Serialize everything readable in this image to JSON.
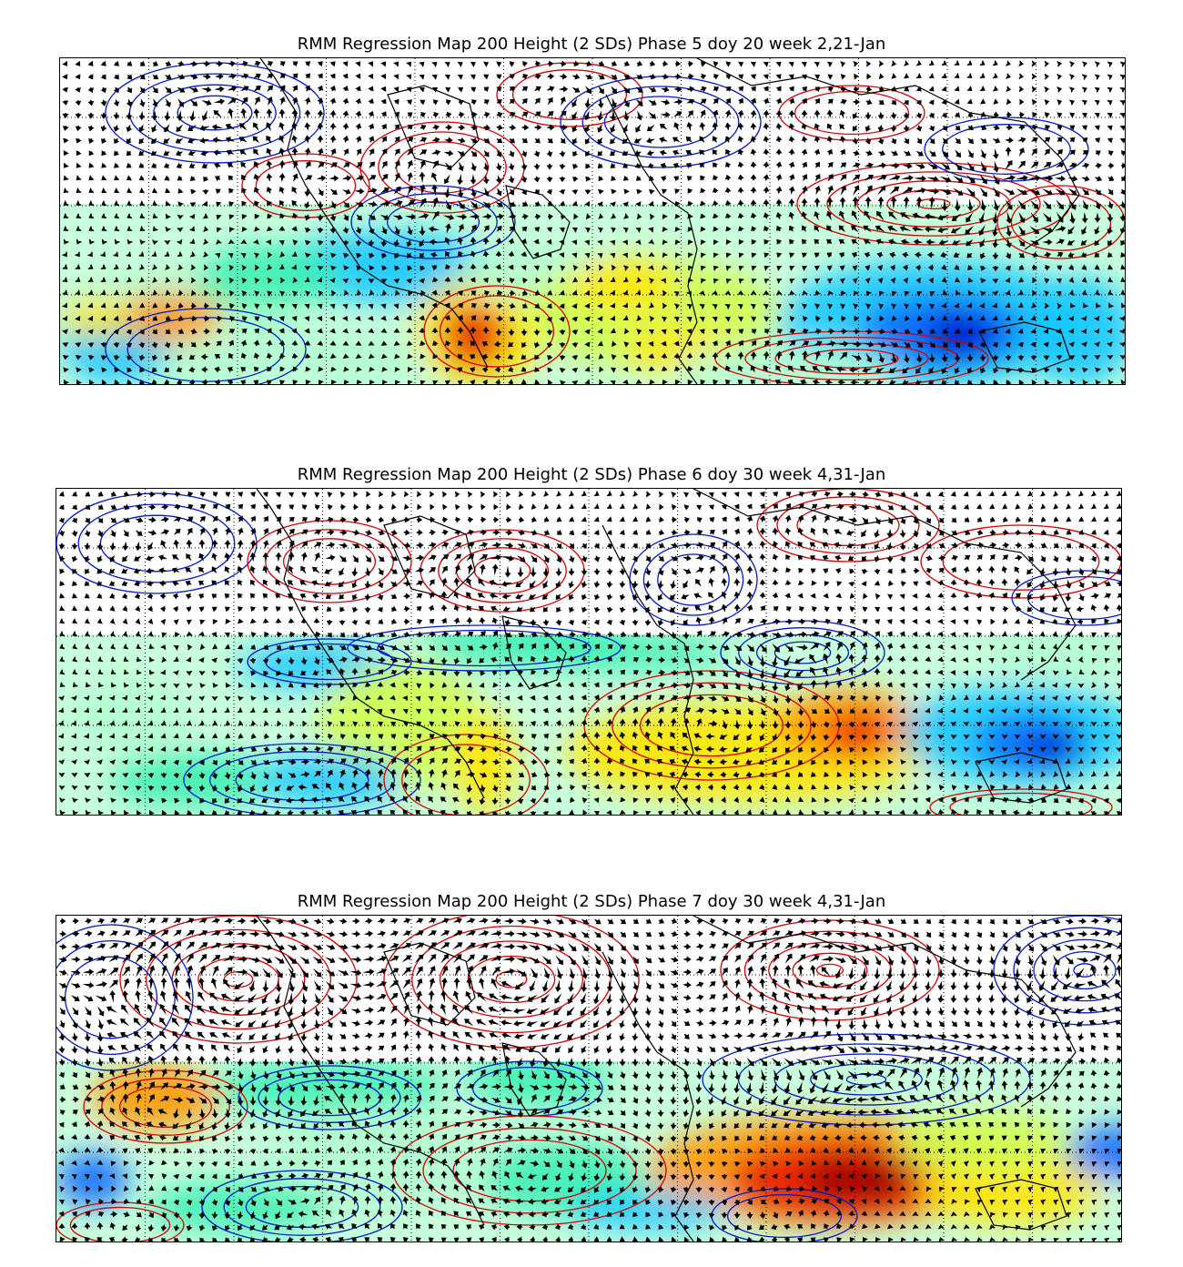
{
  "panels": [
    {
      "title": "RMM Regression Map 200 Height (2 SDs) Phase 5 doy 20 week 2,21-Jan"
    },
    {
      "title": "RMM Regression Map 200 Height (2 SDs) Phase 6 doy 30 week 4,31-Jan"
    },
    {
      "title": "RMM Regression Map 200 Height (2 SDs) Phase 7 doy 30 week 4,31-Jan"
    }
  ],
  "colors": {
    "positive_contour": "#d40000",
    "negative_contour": "#0018c8",
    "coastline": "#000000",
    "wind_vectors": "#000000",
    "gridline": "#000000",
    "shading_scale": [
      "#0000c8",
      "#0a6cff",
      "#18c8ff",
      "#3cf0b4",
      "#b4ffd2",
      "#d2ff50",
      "#ffe600",
      "#ff9600",
      "#e61e00",
      "#960000"
    ]
  }
}
